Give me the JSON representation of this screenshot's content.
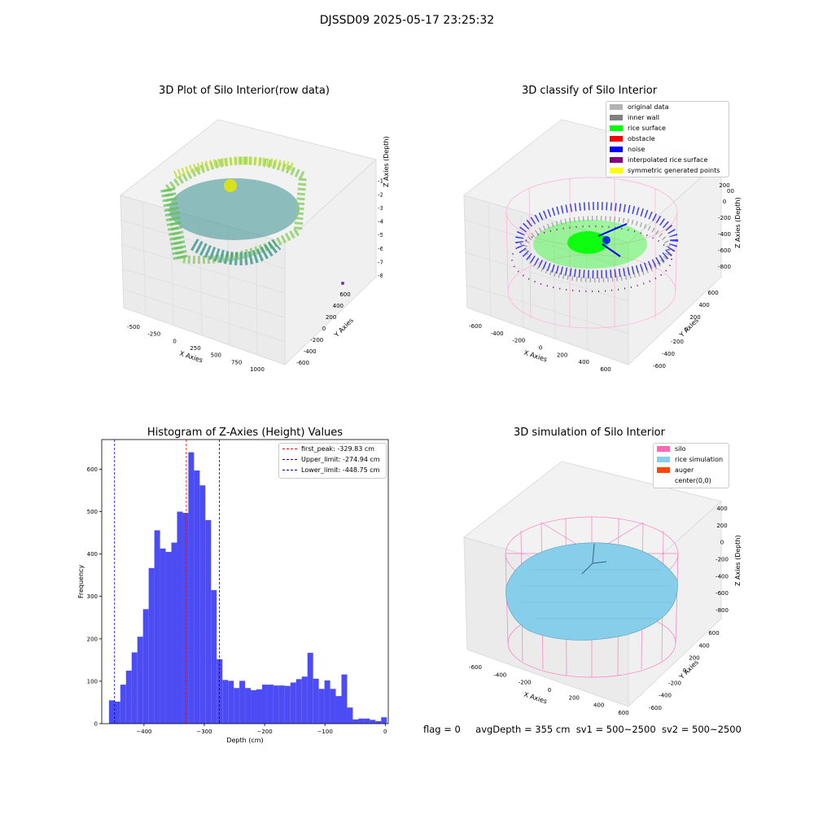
{
  "suptitle": "DJSSD09 2025-05-17 23:25:32",
  "footer": {
    "flag": "flag = 0",
    "avg_depth": "avgDepth = 355 cm",
    "sv1": "sv1 = 500~2500",
    "sv2": "sv2 = 500~2500"
  },
  "colors": {
    "hist_bar": "#4c4cf5",
    "first_peak": "#ff0000",
    "limits": "#0000aa",
    "silo": "#ff69b4",
    "rice": "#87ceeb",
    "auger": "#ff4500"
  },
  "chart_data": [
    {
      "type": "scatter3d",
      "title": "3D Plot of Silo Interior(row data)",
      "xlabel": "X Axies",
      "ylabel": "Y Axies",
      "zlabel": "Z Axies (Depth)",
      "x_ticks": [
        "-500",
        "-250",
        "0",
        "250",
        "500",
        "750",
        "1000"
      ],
      "y_ticks": [
        "600",
        "400",
        "200",
        "0",
        "-200",
        "-400",
        "-600"
      ],
      "z_ticks": [
        "0",
        "-100",
        "-200",
        "-300",
        "-400",
        "-500",
        "-600",
        "-700",
        "-800"
      ]
    },
    {
      "type": "scatter3d",
      "title": "3D classify of Silo Interior",
      "xlabel": "X Axies",
      "ylabel": "Y Axies",
      "zlabel": "Z Axies (Depth)",
      "x_ticks": [
        "-600",
        "-400",
        "-200",
        "0",
        "200",
        "400",
        "600"
      ],
      "y_ticks": [
        "600",
        "400",
        "200",
        "0",
        "-200",
        "-400",
        "-600"
      ],
      "z_ticks": [
        "200",
        "0",
        "-200",
        "-400",
        "-600",
        "-800"
      ],
      "z_ticks_partial": [
        "00"
      ],
      "legend": [
        {
          "label": "original data",
          "color": "#b3b3b3"
        },
        {
          "label": "inner wall",
          "color": "#808080"
        },
        {
          "label": "rice surface",
          "color": "#00ff00"
        },
        {
          "label": "obstacle",
          "color": "#ff0000"
        },
        {
          "label": "noise",
          "color": "#0000ff"
        },
        {
          "label": "interpolated rice surface",
          "color": "#800080"
        },
        {
          "label": "symmetric generated points",
          "color": "#ffff00"
        }
      ]
    },
    {
      "type": "bar",
      "title": "Histogram of Z-Axies (Height) Values",
      "xlabel": "Depth (cm)",
      "ylabel": "Frequency",
      "xlim": [
        -470,
        5
      ],
      "ylim": [
        0,
        670
      ],
      "x_ticks": [
        -400,
        -300,
        -200,
        -100,
        0
      ],
      "y_ticks": [
        0,
        100,
        200,
        300,
        400,
        500,
        600
      ],
      "bin_width": 9.4,
      "bins_start": -458,
      "values": [
        55,
        52,
        92,
        125,
        168,
        205,
        270,
        367,
        456,
        413,
        405,
        427,
        500,
        497,
        640,
        597,
        562,
        480,
        315,
        152,
        103,
        101,
        84,
        101,
        84,
        79,
        81,
        92,
        92,
        90,
        90,
        89,
        97,
        105,
        111,
        167,
        106,
        82,
        102,
        82,
        65,
        116,
        38,
        10,
        12,
        12,
        9,
        6,
        15
      ],
      "lines": [
        {
          "label": "first_peak: -329.83 cm",
          "x": -329.83,
          "color": "#ff0000"
        },
        {
          "label": "Upper_limit: -274.94 cm",
          "x": -274.94,
          "color": "#0000aa"
        },
        {
          "label": "Lower_limit: -448.75 cm",
          "x": -448.75,
          "color": "#0000aa"
        }
      ]
    },
    {
      "type": "surface3d",
      "title": "3D simulation of Silo Interior",
      "xlabel": "X Axies",
      "ylabel": "Y Axies",
      "zlabel": "Z Axies (Depth)",
      "x_ticks": [
        "-600",
        "-400",
        "-200",
        "0",
        "200",
        "400",
        "600"
      ],
      "y_ticks": [
        "600",
        "400",
        "200",
        "0",
        "-200",
        "-400",
        "-600"
      ],
      "z_ticks": [
        "400",
        "200",
        "0",
        "-200",
        "-400",
        "-600",
        "-800"
      ],
      "legend": [
        {
          "label": "silo",
          "color": "#ff69b4"
        },
        {
          "label": "rice simulation",
          "color": "#87ceeb"
        },
        {
          "label": "auger",
          "color": "#ff4500"
        },
        {
          "label": "center(0,0)",
          "color": "#ffffff"
        }
      ]
    }
  ]
}
